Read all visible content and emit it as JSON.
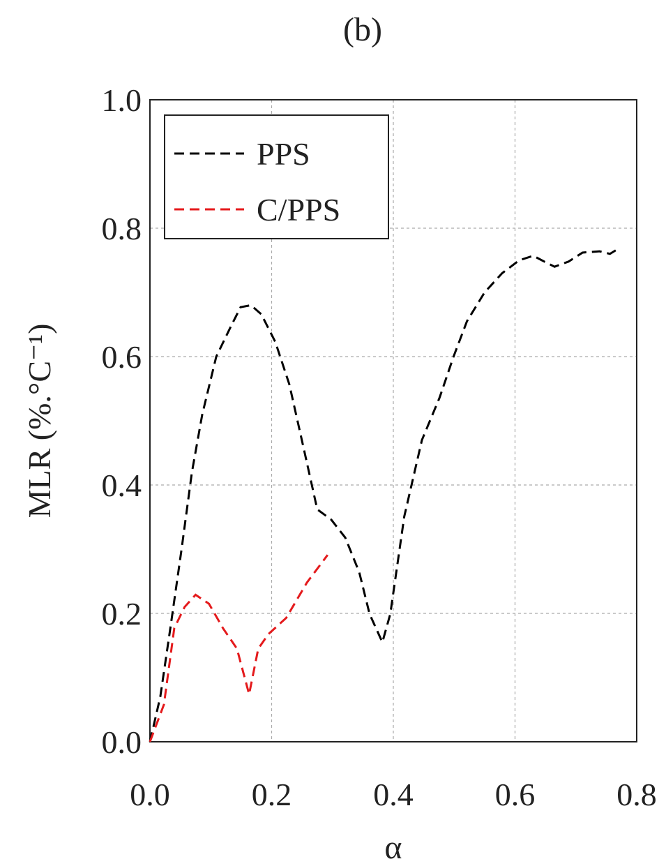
{
  "chart_data": {
    "type": "line",
    "title": "(b)",
    "x_label": "α",
    "y_label": "MLR (%.°C⁻¹)",
    "xlim": [
      0,
      0.8
    ],
    "ylim": [
      0,
      1.0
    ],
    "xticks": [
      {
        "value": 0,
        "label": "0.0"
      },
      0.2,
      0.4,
      0.6,
      {
        "value": 0.8,
        "label": "0.8"
      }
    ],
    "yticks": [
      {
        "value": 0,
        "label": "0.0"
      },
      0.2,
      0.4,
      0.6,
      0.8,
      {
        "value": 1.0,
        "label": "1.0"
      }
    ],
    "grid": true,
    "legend": "upper left",
    "series": [
      {
        "name": "PPS",
        "color": "#000000",
        "x": [
          0,
          0.017,
          0.034,
          0.052,
          0.069,
          0.086,
          0.109,
          0.132,
          0.149,
          0.166,
          0.183,
          0.206,
          0.229,
          0.252,
          0.275,
          0.298,
          0.321,
          0.344,
          0.361,
          0.382,
          0.395,
          0.418,
          0.447,
          0.476,
          0.499,
          0.521,
          0.55,
          0.579,
          0.607,
          0.63,
          0.648,
          0.665,
          0.688,
          0.711,
          0.739,
          0.756,
          0.768
        ],
        "values": [
          0,
          0.07,
          0.18,
          0.3,
          0.42,
          0.51,
          0.6,
          0.645,
          0.677,
          0.68,
          0.666,
          0.623,
          0.557,
          0.46,
          0.362,
          0.346,
          0.318,
          0.264,
          0.199,
          0.155,
          0.199,
          0.351,
          0.47,
          0.536,
          0.6,
          0.655,
          0.7,
          0.73,
          0.75,
          0.757,
          0.748,
          0.74,
          0.748,
          0.762,
          0.764,
          0.76,
          0.767
        ]
      },
      {
        "name": "C/PPS",
        "color": "#e41a1c",
        "x": [
          0,
          0.023,
          0.04,
          0.057,
          0.075,
          0.097,
          0.12,
          0.143,
          0.163,
          0.178,
          0.195,
          0.224,
          0.258,
          0.292
        ],
        "values": [
          0,
          0.058,
          0.177,
          0.21,
          0.229,
          0.215,
          0.177,
          0.145,
          0.074,
          0.145,
          0.168,
          0.193,
          0.248,
          0.291
        ]
      }
    ]
  }
}
